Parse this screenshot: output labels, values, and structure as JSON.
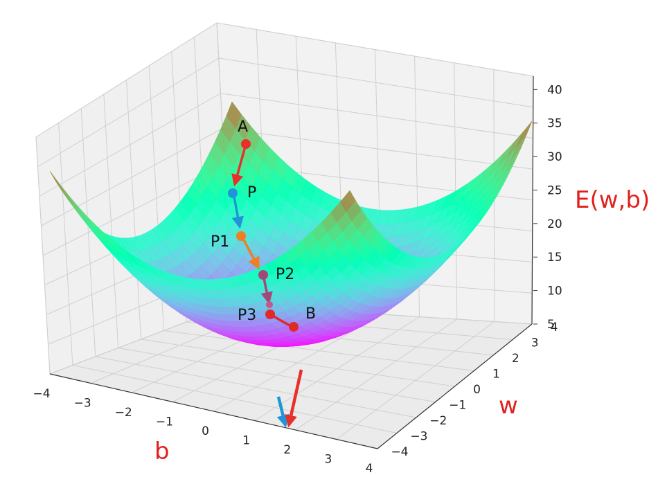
{
  "chart_data": {
    "type": "surface3d",
    "function": "E(w,b) = w^2 + b^2 + 5",
    "title": "",
    "b_axis": {
      "label": "b",
      "range": [
        -4,
        4
      ],
      "ticks": [
        "−4",
        "−3",
        "−2",
        "−1",
        "0",
        "1",
        "2",
        "3",
        "4"
      ]
    },
    "w_axis": {
      "label": "w",
      "range": [
        -4,
        4
      ],
      "ticks": [
        "−4",
        "−3",
        "−2",
        "−1",
        "0",
        "1",
        "2",
        "3",
        "4"
      ]
    },
    "e_axis": {
      "label": "E(w,b)",
      "range": [
        5,
        42
      ],
      "ticks": [
        "5",
        "10",
        "15",
        "20",
        "25",
        "30",
        "35",
        "40"
      ]
    },
    "colormap": "rainbow",
    "grid": true,
    "path_points": [
      {
        "label": "A",
        "color": "#e8302b"
      },
      {
        "label": "P",
        "color": "#1f95d8"
      },
      {
        "label": "P1",
        "color": "#f07f21"
      },
      {
        "label": "P2",
        "color": "#a4487a"
      },
      {
        "label": "",
        "color": "#c05a8a"
      },
      {
        "label": "P3",
        "color": "#e02a2a"
      },
      {
        "label": "B",
        "color": "#e02a2a"
      }
    ],
    "gradient_arrows": [
      {
        "color": "#1f95d8",
        "meaning": "b component"
      },
      {
        "color": "#e8302b",
        "meaning": "w component"
      }
    ]
  }
}
